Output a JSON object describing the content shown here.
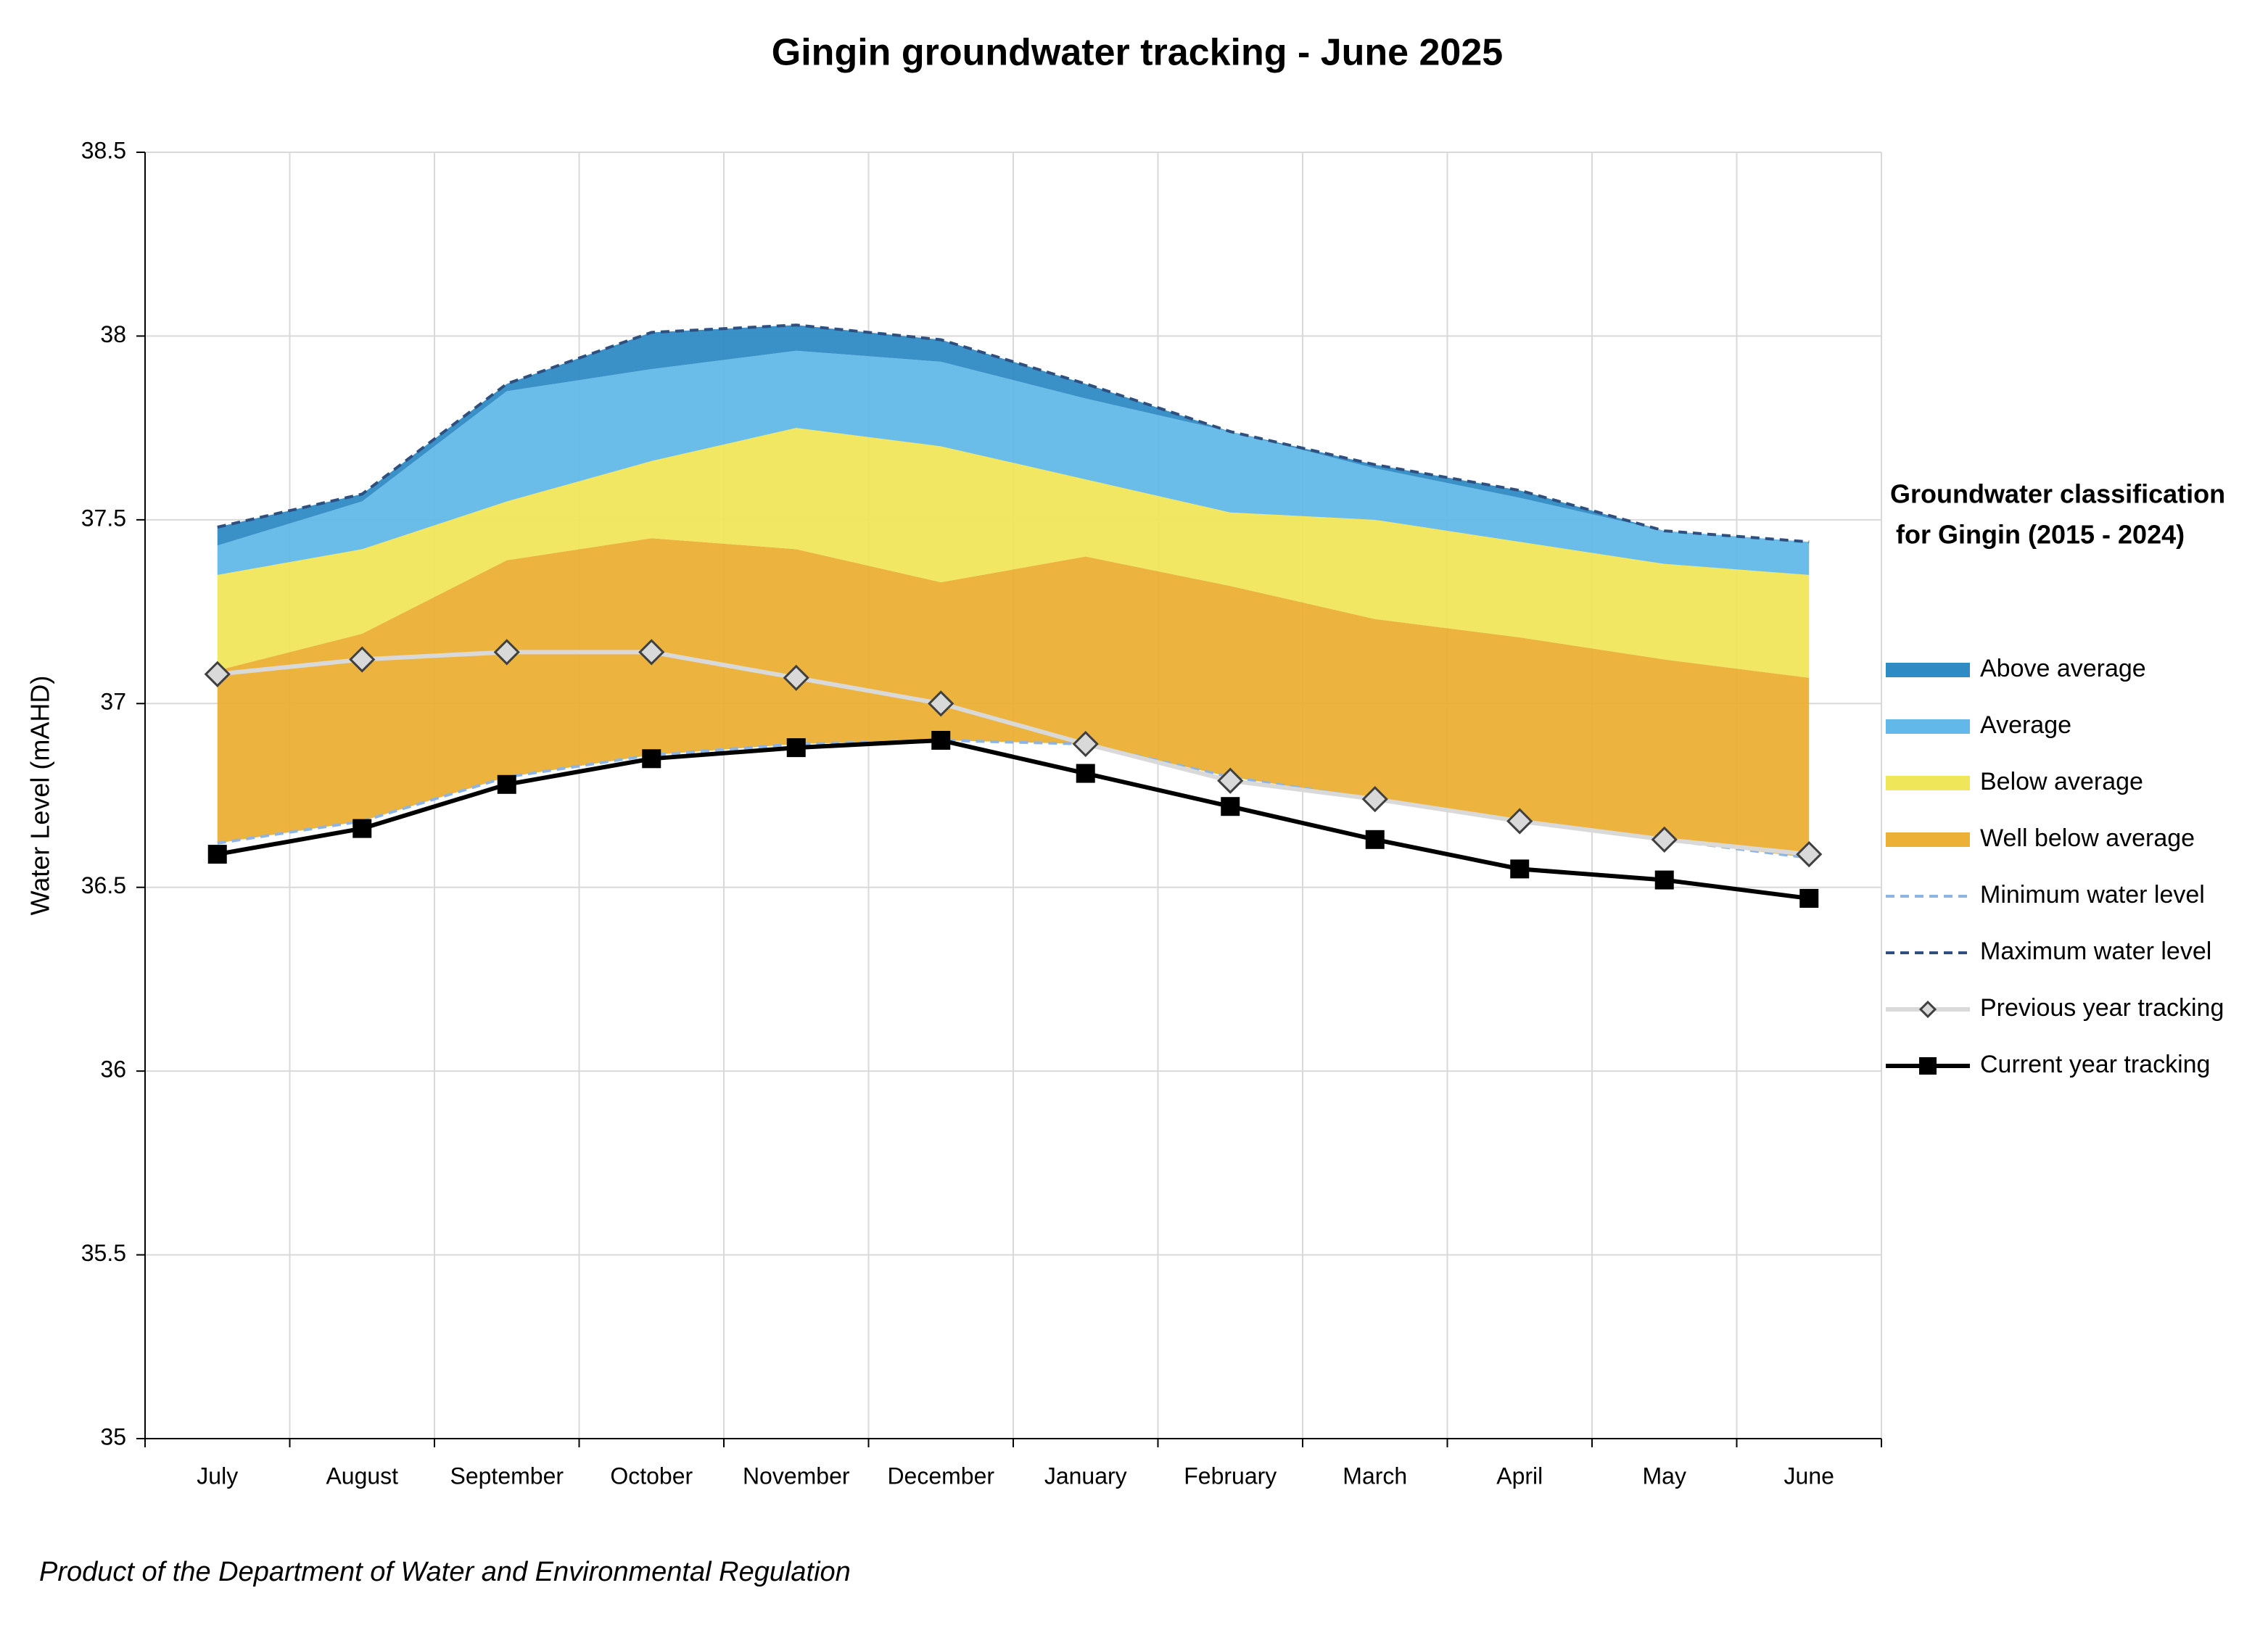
{
  "chart_data": {
    "type": "area",
    "title": "Gingin groundwater tracking - June 2025",
    "y_label": "Water Level (mAHD)",
    "note": "Product of the Department of Water and Environmental Regulation",
    "legend_title": [
      "Groundwater classification",
      "for Gingin (2015 - 2024)"
    ],
    "categories": [
      "July",
      "August",
      "September",
      "October",
      "November",
      "December",
      "January",
      "February",
      "March",
      "April",
      "May",
      "June"
    ],
    "ylim": [
      35,
      38.5
    ],
    "yticks": [
      35,
      35.5,
      36,
      36.5,
      37,
      37.5,
      38,
      38.5
    ],
    "grid": true,
    "series": [
      {
        "name": "Above average",
        "color": "#2e8bc4",
        "fill": true,
        "values": [
          37.48,
          37.57,
          37.87,
          38.01,
          38.03,
          37.99,
          37.87,
          37.74,
          37.65,
          37.58,
          37.47,
          37.44
        ]
      },
      {
        "name": "Average",
        "color": "#62b8e8",
        "fill": true,
        "values": [
          37.43,
          37.55,
          37.85,
          37.91,
          37.96,
          37.93,
          37.83,
          37.74,
          37.64,
          37.56,
          37.47,
          37.44
        ]
      },
      {
        "name": "Below average",
        "color": "#f0e65a",
        "fill": true,
        "values": [
          37.35,
          37.42,
          37.55,
          37.66,
          37.75,
          37.7,
          37.61,
          37.52,
          37.5,
          37.44,
          37.38,
          37.35
        ]
      },
      {
        "name": "Well below average",
        "color": "#ebb035",
        "fill": true,
        "values": [
          37.09,
          37.19,
          37.39,
          37.45,
          37.42,
          37.33,
          37.4,
          37.32,
          37.23,
          37.18,
          37.12,
          37.07
        ]
      },
      {
        "name": "Minimum water level",
        "color": "#8db4e2",
        "dash": true,
        "values": [
          36.62,
          36.68,
          36.8,
          36.86,
          36.89,
          36.9,
          36.89,
          36.8,
          36.74,
          36.68,
          36.63,
          36.58
        ]
      },
      {
        "name": "Maximum water level",
        "color": "#2f4f7f",
        "dash": true,
        "values": [
          37.48,
          37.57,
          37.87,
          38.01,
          38.03,
          37.99,
          37.87,
          37.74,
          37.65,
          37.58,
          37.47,
          37.44
        ]
      },
      {
        "name": "Previous year tracking",
        "color": "#d9d9d9",
        "marker": "diamond",
        "values": [
          37.08,
          37.12,
          37.14,
          37.14,
          37.07,
          37.0,
          36.89,
          36.79,
          36.74,
          36.68,
          36.63,
          36.59
        ]
      },
      {
        "name": "Current year tracking",
        "color": "#000000",
        "marker": "square",
        "values": [
          36.59,
          36.66,
          36.78,
          36.85,
          36.88,
          36.9,
          36.81,
          36.72,
          36.63,
          36.55,
          36.52,
          36.47
        ]
      }
    ]
  }
}
